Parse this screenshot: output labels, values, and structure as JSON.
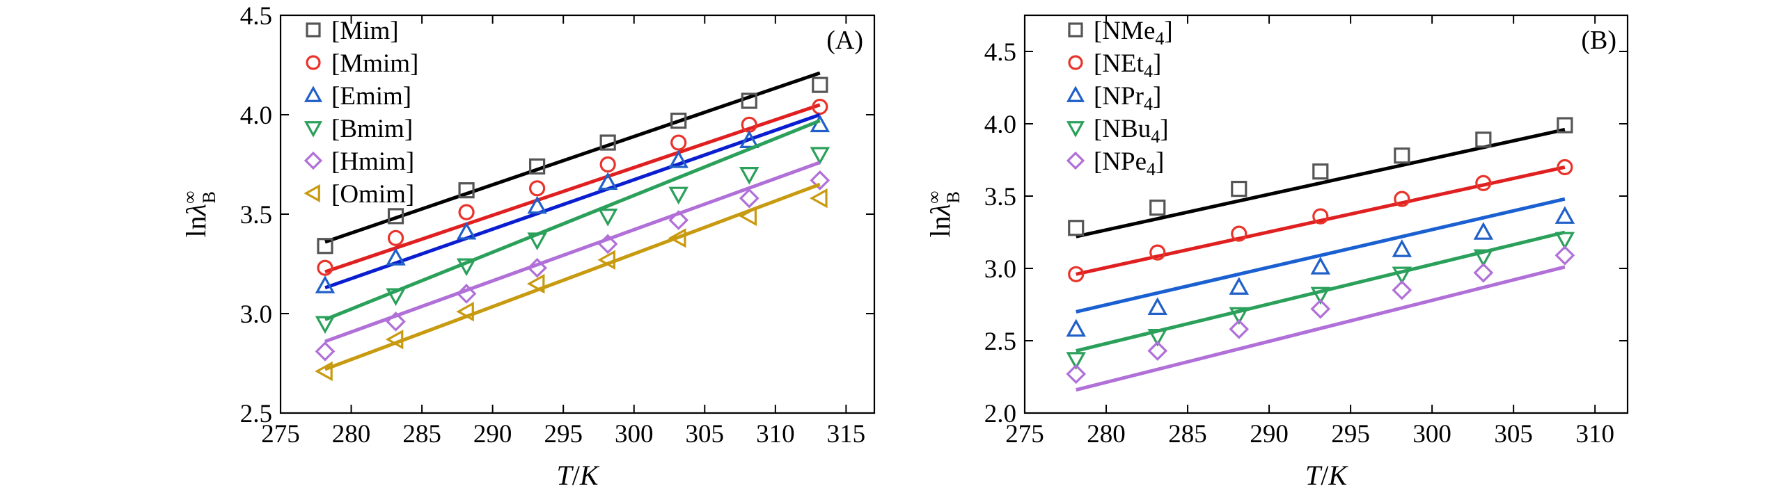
{
  "chart_data": [
    {
      "type": "scatter",
      "panel_label": "(A)",
      "xlabel": {
        "italic_var": "T",
        "slash": "/",
        "italic_unit": "K"
      },
      "ylabel": {
        "prefix": "ln",
        "symbol": "λ",
        "superscript": "∞",
        "subscript": "B"
      },
      "xlim": [
        275,
        317
      ],
      "ylim": [
        2.5,
        4.5
      ],
      "xticks": [
        275,
        280,
        285,
        290,
        295,
        300,
        305,
        310,
        315
      ],
      "yticks": [
        2.5,
        3.0,
        3.5,
        4.0,
        4.5
      ],
      "ytick_labels": [
        "2.5",
        "3.0",
        "3.5",
        "4.0",
        "4.5"
      ],
      "x": [
        278.15,
        283.15,
        288.15,
        293.15,
        298.15,
        303.15,
        308.15,
        313.15
      ],
      "series": [
        {
          "name": "[Mim]",
          "marker": "square",
          "color": "#555555",
          "line_color": "#000000",
          "values": [
            3.34,
            3.49,
            3.62,
            3.74,
            3.86,
            3.97,
            4.07,
            4.15
          ],
          "fit": [
            3.36,
            4.21
          ]
        },
        {
          "name": "[Mmim]",
          "marker": "circle",
          "color": "#e8332a",
          "line_color": "#e02020",
          "values": [
            3.23,
            3.38,
            3.51,
            3.63,
            3.75,
            3.86,
            3.95,
            4.04
          ],
          "fit": [
            3.21,
            4.05
          ]
        },
        {
          "name": "[Emim]",
          "marker": "triangle-up",
          "color": "#2060c8",
          "line_color": "#0a1ed0",
          "values": [
            3.14,
            3.28,
            3.41,
            3.54,
            3.66,
            3.77,
            3.87,
            3.95
          ],
          "fit": [
            3.13,
            4.0
          ]
        },
        {
          "name": "[Bmim]",
          "marker": "triangle-down",
          "color": "#2aa05a",
          "line_color": "#2aa05a",
          "values": [
            2.95,
            3.09,
            3.24,
            3.37,
            3.49,
            3.6,
            3.7,
            3.8
          ],
          "fit": [
            2.97,
            3.97
          ]
        },
        {
          "name": "[Hmim]",
          "marker": "diamond",
          "color": "#b070d8",
          "line_color": "#b070d8",
          "values": [
            2.81,
            2.96,
            3.1,
            3.23,
            3.35,
            3.47,
            3.58,
            3.67
          ],
          "fit": [
            2.86,
            3.76
          ]
        },
        {
          "name": "[Omim]",
          "marker": "triangle-left",
          "color": "#c89a10",
          "line_color": "#c89a10",
          "values": [
            2.71,
            2.87,
            3.01,
            3.15,
            3.27,
            3.38,
            3.49,
            3.58
          ],
          "fit": [
            2.72,
            3.65
          ]
        }
      ]
    },
    {
      "type": "scatter",
      "panel_label": "(B)",
      "xlabel": {
        "italic_var": "T",
        "slash": "/",
        "italic_unit": "K"
      },
      "ylabel": {
        "prefix": "ln",
        "symbol": "λ",
        "superscript": "∞",
        "subscript": "B"
      },
      "xlim": [
        275,
        312
      ],
      "ylim": [
        2.0,
        4.75
      ],
      "xticks": [
        275,
        280,
        285,
        290,
        295,
        300,
        305,
        310
      ],
      "yticks": [
        2.0,
        2.5,
        3.0,
        3.5,
        4.0,
        4.5
      ],
      "ytick_labels": [
        "2.0",
        "2.5",
        "3.0",
        "3.5",
        "4.0",
        "4.5"
      ],
      "x": [
        278.15,
        283.15,
        288.15,
        293.15,
        298.15,
        303.15,
        308.15
      ],
      "series": [
        {
          "name": "[NMe",
          "sub": "4",
          "close": "]",
          "marker": "square",
          "color": "#555555",
          "line_color": "#000000",
          "values": [
            3.28,
            3.42,
            3.55,
            3.67,
            3.78,
            3.89,
            3.99
          ],
          "fit": [
            3.22,
            3.96
          ]
        },
        {
          "name": "[NEt",
          "sub": "4",
          "close": "]",
          "marker": "circle",
          "color": "#e8332a",
          "line_color": "#e02020",
          "values": [
            2.96,
            3.11,
            3.24,
            3.36,
            3.48,
            3.59,
            3.7
          ],
          "fit": [
            2.96,
            3.7
          ]
        },
        {
          "name": "[NPr",
          "sub": "4",
          "close": "]",
          "marker": "triangle-up",
          "color": "#2060c8",
          "line_color": "#1a60d0",
          "values": [
            2.58,
            2.73,
            2.87,
            3.01,
            3.13,
            3.25,
            3.36
          ],
          "fit": [
            2.7,
            3.48
          ]
        },
        {
          "name": "[NBu",
          "sub": "4",
          "close": "]",
          "marker": "triangle-down",
          "color": "#2aa05a",
          "line_color": "#2aa05a",
          "values": [
            2.37,
            2.53,
            2.68,
            2.82,
            2.96,
            3.08,
            3.2
          ],
          "fit": [
            2.43,
            3.25
          ]
        },
        {
          "name": "[NPe",
          "sub": "4",
          "close": "]",
          "marker": "diamond",
          "color": "#b070d8",
          "line_color": "#b070d8",
          "values": [
            2.27,
            2.43,
            2.58,
            2.72,
            2.85,
            2.97,
            3.09
          ],
          "fit": [
            2.16,
            3.01
          ]
        }
      ]
    }
  ]
}
